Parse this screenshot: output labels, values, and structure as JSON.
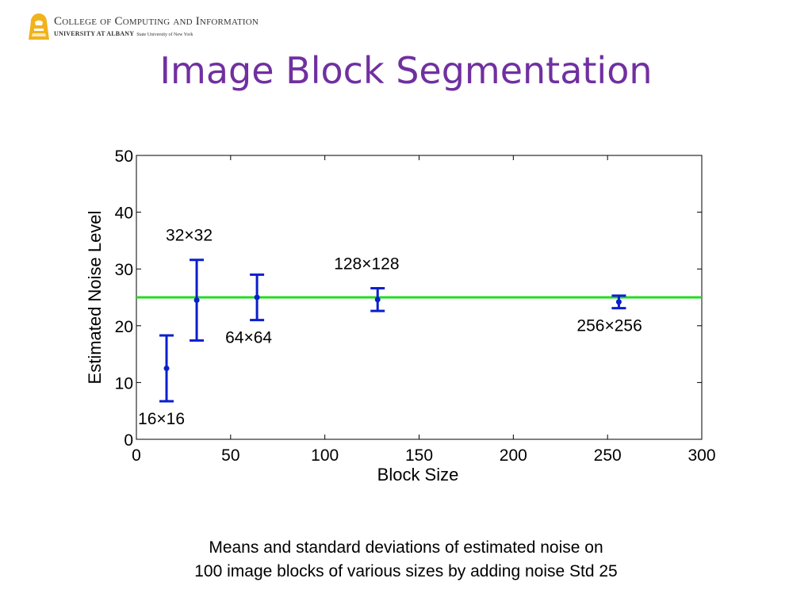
{
  "header": {
    "logo_line1": "College of Computing and Information",
    "logo_line2_main": "UNIVERSITY AT ALBANY",
    "logo_line2_sub": "State University of New York",
    "logo_color": "#f2b21a"
  },
  "slide_title": "Image Block Segmentation",
  "caption": {
    "line1": "Means and standard deviations of estimated noise on",
    "line2": "100 image blocks of various sizes by adding noise Std 25"
  },
  "chart_data": {
    "type": "scatter",
    "title": "",
    "xlabel": "Block Size",
    "ylabel": "Estimated Noise Level",
    "xlim": [
      0,
      300
    ],
    "ylim": [
      0,
      50
    ],
    "x_ticks": [
      0,
      50,
      100,
      150,
      200,
      250,
      300
    ],
    "y_ticks": [
      0,
      10,
      20,
      30,
      40,
      50
    ],
    "grid": false,
    "reference_line": {
      "y": 25,
      "color": "#22dd22"
    },
    "errorbar_color": "#0a1fcc",
    "series": [
      {
        "x": [
          16,
          32,
          64,
          128,
          256
        ],
        "mean": [
          12.5,
          24.5,
          25.0,
          24.6,
          24.2
        ],
        "std": [
          5.8,
          7.1,
          4.0,
          2.0,
          1.1
        ],
        "labels": [
          "16×16",
          "32×32",
          "64×64",
          "128×128",
          "256×256"
        ]
      }
    ]
  }
}
